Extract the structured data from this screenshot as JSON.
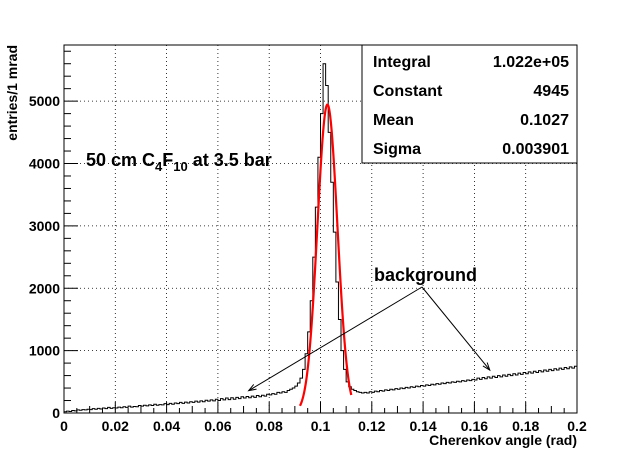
{
  "chart_data": {
    "type": "histogram",
    "xlabel": "Cherenkov angle (rad)",
    "ylabel": "entries/1 mrad",
    "xlim": [
      0,
      0.2
    ],
    "ylim": [
      0,
      5900
    ],
    "x_ticks": [
      "0",
      "0.02",
      "0.04",
      "0.06",
      "0.08",
      "0.1",
      "0.12",
      "0.14",
      "0.16",
      "0.18",
      "0.2"
    ],
    "y_ticks": [
      "0",
      "1000",
      "2000",
      "3000",
      "4000",
      "5000"
    ],
    "grid": true,
    "stats_box": {
      "position": "top-right",
      "rows": [
        {
          "label": "Integral",
          "value": "1.022e+05"
        },
        {
          "label": "Constant",
          "value": "4945"
        },
        {
          "label": "Mean",
          "value": "0.1027"
        },
        {
          "label": "Sigma",
          "value": "0.003901"
        }
      ]
    },
    "annotations": {
      "title_main": "50 cm C",
      "title_sub1": "4",
      "title_mid": "F",
      "title_sub2": "10",
      "title_tail": " at 3.5 bar",
      "background_label": "background"
    },
    "fit": {
      "type": "gaussian",
      "constant": 4945,
      "mean": 0.1027,
      "sigma": 0.003901,
      "color": "#ff0000",
      "range": [
        0.092,
        0.112
      ]
    },
    "histogram_color": "#000000",
    "bin_width": 0.001,
    "bins": [
      [
        0.001,
        20
      ],
      [
        0.002,
        30
      ],
      [
        0.003,
        25
      ],
      [
        0.004,
        40
      ],
      [
        0.005,
        35
      ],
      [
        0.006,
        50
      ],
      [
        0.007,
        45
      ],
      [
        0.008,
        55
      ],
      [
        0.009,
        50
      ],
      [
        0.01,
        60
      ],
      [
        0.011,
        55
      ],
      [
        0.012,
        70
      ],
      [
        0.013,
        60
      ],
      [
        0.014,
        75
      ],
      [
        0.015,
        65
      ],
      [
        0.016,
        80
      ],
      [
        0.017,
        70
      ],
      [
        0.018,
        90
      ],
      [
        0.019,
        75
      ],
      [
        0.02,
        85
      ],
      [
        0.021,
        80
      ],
      [
        0.022,
        95
      ],
      [
        0.023,
        85
      ],
      [
        0.024,
        100
      ],
      [
        0.025,
        90
      ],
      [
        0.026,
        110
      ],
      [
        0.027,
        95
      ],
      [
        0.028,
        105
      ],
      [
        0.029,
        100
      ],
      [
        0.03,
        120
      ],
      [
        0.031,
        110
      ],
      [
        0.032,
        125
      ],
      [
        0.033,
        115
      ],
      [
        0.034,
        130
      ],
      [
        0.035,
        120
      ],
      [
        0.036,
        140
      ],
      [
        0.037,
        125
      ],
      [
        0.038,
        135
      ],
      [
        0.039,
        130
      ],
      [
        0.04,
        150
      ],
      [
        0.041,
        135
      ],
      [
        0.042,
        155
      ],
      [
        0.043,
        140
      ],
      [
        0.044,
        160
      ],
      [
        0.045,
        150
      ],
      [
        0.046,
        170
      ],
      [
        0.047,
        155
      ],
      [
        0.048,
        175
      ],
      [
        0.049,
        160
      ],
      [
        0.05,
        180
      ],
      [
        0.051,
        170
      ],
      [
        0.052,
        190
      ],
      [
        0.053,
        175
      ],
      [
        0.054,
        195
      ],
      [
        0.055,
        180
      ],
      [
        0.056,
        205
      ],
      [
        0.057,
        190
      ],
      [
        0.058,
        210
      ],
      [
        0.059,
        195
      ],
      [
        0.06,
        220
      ],
      [
        0.061,
        200
      ],
      [
        0.062,
        230
      ],
      [
        0.063,
        210
      ],
      [
        0.064,
        240
      ],
      [
        0.065,
        215
      ],
      [
        0.066,
        245
      ],
      [
        0.067,
        220
      ],
      [
        0.068,
        250
      ],
      [
        0.069,
        230
      ],
      [
        0.07,
        260
      ],
      [
        0.071,
        240
      ],
      [
        0.072,
        265
      ],
      [
        0.073,
        245
      ],
      [
        0.074,
        270
      ],
      [
        0.075,
        250
      ],
      [
        0.076,
        280
      ],
      [
        0.077,
        260
      ],
      [
        0.078,
        285
      ],
      [
        0.079,
        270
      ],
      [
        0.08,
        300
      ],
      [
        0.081,
        290
      ],
      [
        0.082,
        310
      ],
      [
        0.083,
        300
      ],
      [
        0.084,
        330
      ],
      [
        0.085,
        320
      ],
      [
        0.086,
        340
      ],
      [
        0.087,
        330
      ],
      [
        0.088,
        360
      ],
      [
        0.089,
        380
      ],
      [
        0.09,
        400
      ],
      [
        0.091,
        430
      ],
      [
        0.092,
        480
      ],
      [
        0.093,
        560
      ],
      [
        0.094,
        700
      ],
      [
        0.095,
        950
      ],
      [
        0.096,
        1300
      ],
      [
        0.097,
        1800
      ],
      [
        0.098,
        2500
      ],
      [
        0.099,
        3300
      ],
      [
        0.1,
        4100
      ],
      [
        0.101,
        4800
      ],
      [
        0.102,
        5600
      ],
      [
        0.103,
        5250
      ],
      [
        0.104,
        4500
      ],
      [
        0.105,
        3700
      ],
      [
        0.106,
        2900
      ],
      [
        0.107,
        2100
      ],
      [
        0.108,
        1500
      ],
      [
        0.109,
        1000
      ],
      [
        0.11,
        700
      ],
      [
        0.111,
        500
      ],
      [
        0.112,
        420
      ],
      [
        0.113,
        380
      ],
      [
        0.114,
        360
      ],
      [
        0.115,
        340
      ],
      [
        0.116,
        330
      ],
      [
        0.117,
        320
      ],
      [
        0.118,
        330
      ],
      [
        0.119,
        320
      ],
      [
        0.12,
        340
      ],
      [
        0.121,
        330
      ],
      [
        0.122,
        350
      ],
      [
        0.123,
        340
      ],
      [
        0.124,
        360
      ],
      [
        0.125,
        350
      ],
      [
        0.126,
        370
      ],
      [
        0.127,
        360
      ],
      [
        0.128,
        380
      ],
      [
        0.129,
        370
      ],
      [
        0.13,
        390
      ],
      [
        0.131,
        380
      ],
      [
        0.132,
        400
      ],
      [
        0.133,
        390
      ],
      [
        0.134,
        410
      ],
      [
        0.135,
        400
      ],
      [
        0.136,
        420
      ],
      [
        0.137,
        410
      ],
      [
        0.138,
        430
      ],
      [
        0.139,
        420
      ],
      [
        0.14,
        440
      ],
      [
        0.141,
        430
      ],
      [
        0.142,
        450
      ],
      [
        0.143,
        440
      ],
      [
        0.144,
        460
      ],
      [
        0.145,
        450
      ],
      [
        0.146,
        470
      ],
      [
        0.147,
        460
      ],
      [
        0.148,
        480
      ],
      [
        0.149,
        470
      ],
      [
        0.15,
        490
      ],
      [
        0.151,
        480
      ],
      [
        0.152,
        500
      ],
      [
        0.153,
        490
      ],
      [
        0.154,
        510
      ],
      [
        0.155,
        500
      ],
      [
        0.156,
        520
      ],
      [
        0.157,
        510
      ],
      [
        0.158,
        530
      ],
      [
        0.159,
        520
      ],
      [
        0.16,
        540
      ],
      [
        0.161,
        530
      ],
      [
        0.162,
        560
      ],
      [
        0.163,
        540
      ],
      [
        0.164,
        570
      ],
      [
        0.165,
        550
      ],
      [
        0.166,
        580
      ],
      [
        0.167,
        560
      ],
      [
        0.168,
        590
      ],
      [
        0.169,
        570
      ],
      [
        0.17,
        600
      ],
      [
        0.171,
        580
      ],
      [
        0.172,
        610
      ],
      [
        0.173,
        590
      ],
      [
        0.174,
        620
      ],
      [
        0.175,
        600
      ],
      [
        0.176,
        630
      ],
      [
        0.177,
        610
      ],
      [
        0.178,
        640
      ],
      [
        0.179,
        620
      ],
      [
        0.18,
        650
      ],
      [
        0.181,
        630
      ],
      [
        0.182,
        660
      ],
      [
        0.183,
        640
      ],
      [
        0.184,
        670
      ],
      [
        0.185,
        650
      ],
      [
        0.186,
        680
      ],
      [
        0.187,
        660
      ],
      [
        0.188,
        690
      ],
      [
        0.189,
        670
      ],
      [
        0.19,
        700
      ],
      [
        0.191,
        680
      ],
      [
        0.192,
        710
      ],
      [
        0.193,
        690
      ],
      [
        0.194,
        720
      ],
      [
        0.195,
        700
      ],
      [
        0.196,
        730
      ],
      [
        0.197,
        710
      ],
      [
        0.198,
        740
      ],
      [
        0.199,
        720
      ],
      [
        0.2,
        750
      ]
    ],
    "background_arrow_targets": [
      [
        0.072,
        230
      ],
      [
        0.166,
        560
      ]
    ]
  }
}
